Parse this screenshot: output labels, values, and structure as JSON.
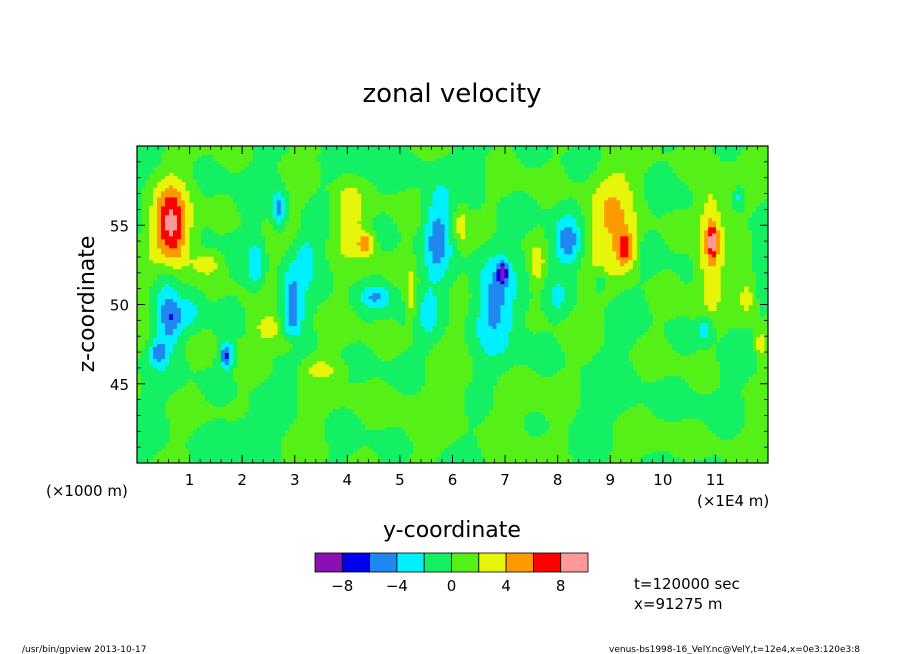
{
  "chart_data": {
    "type": "heatmap",
    "title": "zonal velocity",
    "xlabel": "y-coordinate",
    "ylabel": "z-coordinate",
    "x_unit_left": "(×1000 m)",
    "x_unit_right": "(×1E4 m)",
    "xlim": [
      0,
      12
    ],
    "ylim": [
      40,
      60
    ],
    "x_ticks": [
      1,
      2,
      3,
      4,
      5,
      6,
      7,
      8,
      9,
      10,
      11
    ],
    "x_tick_labels": [
      "1",
      "2",
      "3",
      "4",
      "5",
      "6",
      "7",
      "8",
      "9",
      "10",
      "11"
    ],
    "y_ticks": [
      45,
      50,
      55
    ],
    "y_tick_labels": [
      "45",
      "50",
      "55"
    ],
    "levels": [
      -10,
      -8,
      -6,
      -4,
      -2,
      0,
      2,
      4,
      6,
      8,
      10
    ],
    "level_colors": [
      "#8a10b5",
      "#0000ee",
      "#1e88f0",
      "#00f0ff",
      "#14f064",
      "#55f018",
      "#e6f50a",
      "#ff9900",
      "#ff0000",
      "#ff9999"
    ],
    "colorbar_tick_values": [
      -8,
      -4,
      0,
      4,
      8
    ],
    "colorbar_tick_labels": [
      "−8",
      "−4",
      "0",
      "4",
      "8"
    ],
    "features": [
      {
        "x": 0.65,
        "y": 54.8,
        "v": 9.2,
        "rx": 0.33,
        "ry": 2.6
      },
      {
        "x": 0.55,
        "y": 51.0,
        "v": -3.0,
        "rx": 0.25,
        "ry": 3.5
      },
      {
        "x": 0.4,
        "y": 47.0,
        "v": -4.5,
        "rx": 0.15,
        "ry": 0.8
      },
      {
        "x": 0.65,
        "y": 49.0,
        "v": -3.5,
        "rx": 0.2,
        "ry": 1.3
      },
      {
        "x": 1.3,
        "y": 52.6,
        "v": 3.5,
        "rx": 0.25,
        "ry": 0.7
      },
      {
        "x": 1.0,
        "y": 49.5,
        "v": -2.5,
        "rx": 0.2,
        "ry": 1.0
      },
      {
        "x": 1.7,
        "y": 46.8,
        "v": -7.0,
        "rx": 0.12,
        "ry": 0.8
      },
      {
        "x": 2.25,
        "y": 52.5,
        "v": -3.5,
        "rx": 0.15,
        "ry": 1.5
      },
      {
        "x": 2.5,
        "y": 48.5,
        "v": 3.5,
        "rx": 0.22,
        "ry": 0.8
      },
      {
        "x": 2.7,
        "y": 56.0,
        "v": -5.0,
        "rx": 0.12,
        "ry": 1.2
      },
      {
        "x": 2.95,
        "y": 50.0,
        "v": -4.5,
        "rx": 0.2,
        "ry": 2.8
      },
      {
        "x": 2.9,
        "y": 47.5,
        "v": 3.5,
        "rx": 0.25,
        "ry": 0.8
      },
      {
        "x": 3.2,
        "y": 53.0,
        "v": -3.0,
        "rx": 0.15,
        "ry": 1.5
      },
      {
        "x": 4.0,
        "y": 55.5,
        "v": 3.5,
        "rx": 0.3,
        "ry": 2.5
      },
      {
        "x": 4.35,
        "y": 53.8,
        "v": 5.5,
        "rx": 0.15,
        "ry": 0.7
      },
      {
        "x": 4.55,
        "y": 50.5,
        "v": -4.0,
        "rx": 0.3,
        "ry": 0.8
      },
      {
        "x": 5.2,
        "y": 50.5,
        "v": 3.0,
        "rx": 0.1,
        "ry": 1.8
      },
      {
        "x": 5.7,
        "y": 54.5,
        "v": -4.5,
        "rx": 0.25,
        "ry": 2.8
      },
      {
        "x": 5.55,
        "y": 49.5,
        "v": -2.5,
        "rx": 0.15,
        "ry": 1.5
      },
      {
        "x": 6.15,
        "y": 55.0,
        "v": 3.0,
        "rx": 0.15,
        "ry": 1.5
      },
      {
        "x": 6.8,
        "y": 50.3,
        "v": -4.5,
        "rx": 0.4,
        "ry": 3.2
      },
      {
        "x": 6.95,
        "y": 52.0,
        "v": -8.5,
        "rx": 0.08,
        "ry": 0.6
      },
      {
        "x": 7.6,
        "y": 52.5,
        "v": 3.0,
        "rx": 0.15,
        "ry": 1.5
      },
      {
        "x": 8.2,
        "y": 54.0,
        "v": -5.0,
        "rx": 0.25,
        "ry": 1.5
      },
      {
        "x": 8.0,
        "y": 50.5,
        "v": -2.2,
        "rx": 0.15,
        "ry": 1.0
      },
      {
        "x": 9.0,
        "y": 55.5,
        "v": 3.5,
        "rx": 0.5,
        "ry": 3.5
      },
      {
        "x": 9.3,
        "y": 53.5,
        "v": 6.0,
        "rx": 0.18,
        "ry": 1.2
      },
      {
        "x": 8.8,
        "y": 51.5,
        "v": -2.5,
        "rx": 0.12,
        "ry": 0.8
      },
      {
        "x": 10.9,
        "y": 54.0,
        "v": 4.2,
        "rx": 0.25,
        "ry": 4.2
      },
      {
        "x": 10.95,
        "y": 54.0,
        "v": 6.0,
        "rx": 0.08,
        "ry": 1.0
      },
      {
        "x": 10.8,
        "y": 48.5,
        "v": -4.0,
        "rx": 0.15,
        "ry": 0.8
      },
      {
        "x": 11.6,
        "y": 50.5,
        "v": 3.5,
        "rx": 0.2,
        "ry": 1.5
      },
      {
        "x": 11.45,
        "y": 56.8,
        "v": -3.0,
        "rx": 0.1,
        "ry": 0.7
      },
      {
        "x": 11.85,
        "y": 47.5,
        "v": 3.5,
        "rx": 0.1,
        "ry": 0.8
      },
      {
        "x": 3.5,
        "y": 46.0,
        "v": 2.0,
        "rx": 0.4,
        "ry": 0.6
      },
      {
        "x": 6.0,
        "y": 43.5,
        "v": 0.8,
        "rx": 2.0,
        "ry": 2.0
      },
      {
        "x": 2.0,
        "y": 42.0,
        "v": -1.2,
        "rx": 0.6,
        "ry": 1.0
      },
      {
        "x": 9.0,
        "y": 44.0,
        "v": -1.0,
        "rx": 1.0,
        "ry": 1.5
      },
      {
        "x": 5.0,
        "y": 58.5,
        "v": -1.0,
        "rx": 1.5,
        "ry": 1.0
      },
      {
        "x": 10.0,
        "y": 41.5,
        "v": 1.0,
        "rx": 1.0,
        "ry": 1.0
      }
    ]
  },
  "annotations": {
    "time": "t=120000 sec",
    "xpos": "x=91275 m"
  },
  "footer": {
    "left": "/usr/bin/gpview  2013-10-17",
    "right": "venus-bs1998-16_VelY.nc@VelY,t=12e4,x=0e3:120e3:8"
  }
}
